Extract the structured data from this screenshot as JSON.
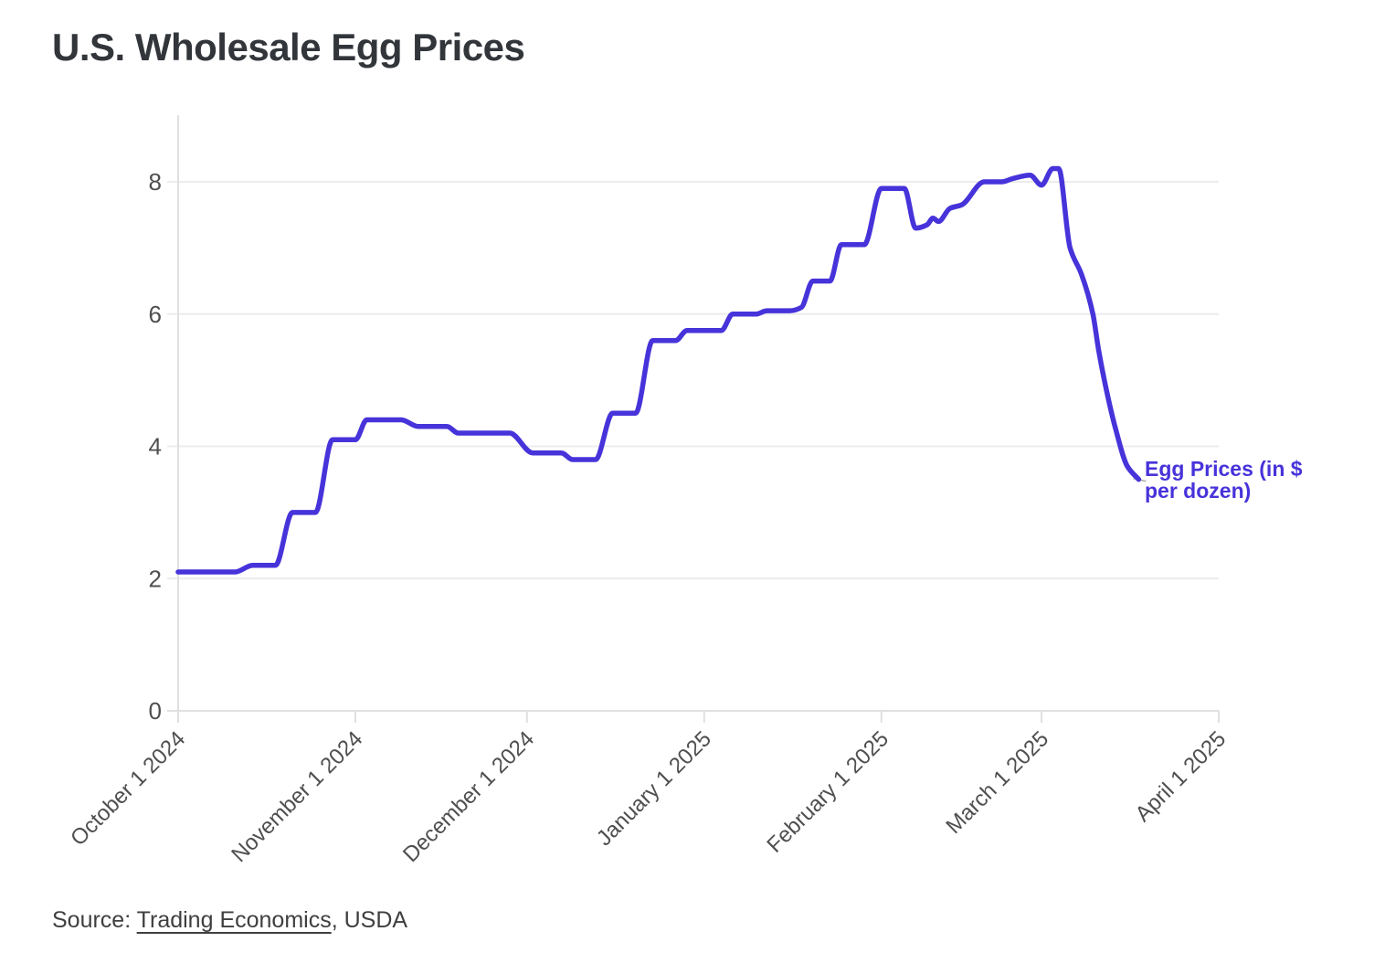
{
  "header": {
    "title": "U.S. Wholesale Egg Prices"
  },
  "annotation": {
    "line1": "Egg Prices (in $",
    "line2": "per dozen)",
    "color": "#4733da"
  },
  "source": {
    "prefix": "Source: ",
    "link_text": "Trading Economics",
    "suffix": ", USDA"
  },
  "colors": {
    "line": "#4733da",
    "grid": "#ececec",
    "axis": "#e0e0e0",
    "tick_text": "#4f4f4f",
    "title_text": "#32363b"
  },
  "chart_data": {
    "type": "line",
    "title": "U.S. Wholesale Egg Prices",
    "xlabel": "",
    "ylabel": "",
    "grid": "horizontal",
    "legend": "inline-annotation",
    "x_axis": {
      "start": "October 1 2024",
      "end": "April 1 2025",
      "tick_labels": [
        "October 1 2024",
        "November 1 2024",
        "December 1 2024",
        "January 1 2025",
        "February 1 2025",
        "March 1 2025",
        "April 1 2025"
      ]
    },
    "y_axis": {
      "ticks": [
        0,
        2,
        4,
        6,
        8
      ],
      "ylim": [
        0,
        9
      ]
    },
    "series": [
      {
        "name": "Egg Prices (in $ per dozen)",
        "color": "#4733da",
        "points": [
          {
            "date": "Oct 1 2024",
            "value": 2.1
          },
          {
            "date": "Oct 11 2024",
            "value": 2.1
          },
          {
            "date": "Oct 14 2024",
            "value": 2.2
          },
          {
            "date": "Oct 18 2024",
            "value": 2.2
          },
          {
            "date": "Oct 21 2024",
            "value": 3.0
          },
          {
            "date": "Oct 25 2024",
            "value": 3.0
          },
          {
            "date": "Oct 28 2024",
            "value": 4.1
          },
          {
            "date": "Nov 1 2024",
            "value": 4.1
          },
          {
            "date": "Nov 3 2024",
            "value": 4.4
          },
          {
            "date": "Nov 9 2024",
            "value": 4.4
          },
          {
            "date": "Nov 12 2024",
            "value": 4.3
          },
          {
            "date": "Nov 17 2024",
            "value": 4.3
          },
          {
            "date": "Nov 19 2024",
            "value": 4.2
          },
          {
            "date": "Nov 28 2024",
            "value": 4.2
          },
          {
            "date": "Dec 2 2024",
            "value": 3.9
          },
          {
            "date": "Dec 7 2024",
            "value": 3.9
          },
          {
            "date": "Dec 9 2024",
            "value": 3.8
          },
          {
            "date": "Dec 13 2024",
            "value": 3.8
          },
          {
            "date": "Dec 16 2024",
            "value": 4.5
          },
          {
            "date": "Dec 20 2024",
            "value": 4.5
          },
          {
            "date": "Dec 23 2024",
            "value": 5.6
          },
          {
            "date": "Dec 27 2024",
            "value": 5.6
          },
          {
            "date": "Dec 29 2024",
            "value": 5.75
          },
          {
            "date": "Jan 4 2025",
            "value": 5.75
          },
          {
            "date": "Jan 6 2025",
            "value": 6.0
          },
          {
            "date": "Jan 10 2025",
            "value": 6.0
          },
          {
            "date": "Jan 12 2025",
            "value": 6.05
          },
          {
            "date": "Jan 16 2025",
            "value": 6.05
          },
          {
            "date": "Jan 18 2025",
            "value": 6.1
          },
          {
            "date": "Jan 20 2025",
            "value": 6.5
          },
          {
            "date": "Jan 23 2025",
            "value": 6.5
          },
          {
            "date": "Jan 25 2025",
            "value": 7.05
          },
          {
            "date": "Jan 29 2025",
            "value": 7.05
          },
          {
            "date": "Feb 1 2025",
            "value": 7.9
          },
          {
            "date": "Feb 5 2025",
            "value": 7.9
          },
          {
            "date": "Feb 7 2025",
            "value": 7.3
          },
          {
            "date": "Feb 9 2025",
            "value": 7.35
          },
          {
            "date": "Feb 10 2025",
            "value": 7.45
          },
          {
            "date": "Feb 11 2025",
            "value": 7.4
          },
          {
            "date": "Feb 13 2025",
            "value": 7.6
          },
          {
            "date": "Feb 15 2025",
            "value": 7.65
          },
          {
            "date": "Feb 19 2025",
            "value": 8.0
          },
          {
            "date": "Feb 22 2025",
            "value": 8.0
          },
          {
            "date": "Feb 24 2025",
            "value": 8.05
          },
          {
            "date": "Feb 27 2025",
            "value": 8.1
          },
          {
            "date": "Mar 1 2025",
            "value": 7.95
          },
          {
            "date": "Mar 3 2025",
            "value": 8.2
          },
          {
            "date": "Mar 4 2025",
            "value": 8.2
          },
          {
            "date": "Mar 6 2025",
            "value": 7.0
          },
          {
            "date": "Mar 8 2025",
            "value": 6.6
          },
          {
            "date": "Mar 10 2025",
            "value": 6.0
          },
          {
            "date": "Mar 11 2025",
            "value": 5.45
          },
          {
            "date": "Mar 12 2025",
            "value": 5.0
          },
          {
            "date": "Mar 13 2025",
            "value": 4.6
          },
          {
            "date": "Mar 14 2025",
            "value": 4.25
          },
          {
            "date": "Mar 16 2025",
            "value": 3.7
          },
          {
            "date": "Mar 18 2025",
            "value": 3.5
          }
        ]
      }
    ]
  }
}
